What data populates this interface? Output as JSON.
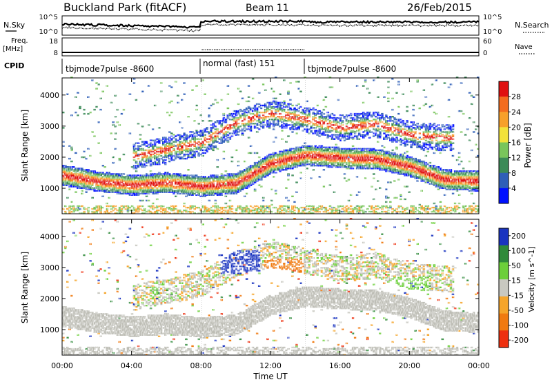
{
  "header": {
    "station": "Buckland Park (fitACF)",
    "beam": "Beam 11",
    "date": "26/Feb/2015"
  },
  "top_panels": {
    "nsky_label": "N.Sky",
    "nsearch_label": "N.Search",
    "noise_ticks": [
      "10^5",
      "10^0"
    ],
    "freq_label_line1": "Freq.",
    "freq_label_line2": "[MHz]",
    "freq_ticks": [
      "18",
      "8"
    ],
    "nave_label": "Nave",
    "nave_ticks": [
      "60",
      "0"
    ],
    "cpid_label": "CPID",
    "cpid_segments": [
      {
        "name": "tbjmode7pulse -8600",
        "start_hour": 0,
        "end_hour": 8.05
      },
      {
        "name": "normal (fast) 151",
        "start_hour": 8.05,
        "end_hour": 14.0
      },
      {
        "name": "tbjmode7pulse -8600",
        "start_hour": 14.0,
        "end_hour": 24
      }
    ]
  },
  "chart_data": [
    {
      "type": "heatmap",
      "parameter": "Power",
      "xlabel": "Time UT",
      "ylabel": "Slant Range [km]",
      "xlim": [
        0,
        24
      ],
      "ylim": [
        180,
        4550
      ],
      "x_ticks": [
        "00:00",
        "04:00",
        "08:00",
        "12:00",
        "16:00",
        "20:00",
        "00:00"
      ],
      "y_ticks": [
        1000,
        2000,
        3000,
        4000
      ],
      "colorbar": {
        "label": "Power [dB]",
        "ticks": [
          4,
          8,
          12,
          16,
          20,
          24,
          28
        ],
        "colors": [
          "#0010ff",
          "#2f5fb8",
          "#3b8a57",
          "#79c55b",
          "#f2e23a",
          "#f7a02a",
          "#f36c1e",
          "#e01010"
        ]
      },
      "echo_bands": [
        {
          "name": "main",
          "points": [
            [
              0,
              1400
            ],
            [
              2,
              1200
            ],
            [
              4,
              1080
            ],
            [
              6,
              1160
            ],
            [
              8,
              1040
            ],
            [
              10,
              1140
            ],
            [
              12,
              1780
            ],
            [
              14,
              2050
            ],
            [
              16,
              1960
            ],
            [
              18,
              1920
            ],
            [
              20,
              1680
            ],
            [
              22,
              1250
            ],
            [
              24,
              1220
            ]
          ]
        },
        {
          "name": "upper",
          "points": [
            [
              4,
              2000
            ],
            [
              8,
              2450
            ],
            [
              10,
              3100
            ],
            [
              12,
              3400
            ],
            [
              14,
              3200
            ],
            [
              16,
              2920
            ],
            [
              18,
              3050
            ],
            [
              20,
              2700
            ],
            [
              22,
              2600
            ]
          ]
        }
      ]
    },
    {
      "type": "heatmap",
      "parameter": "Velocity",
      "xlabel": "Time UT",
      "ylabel": "Slant Range [km]",
      "xlim": [
        0,
        24
      ],
      "ylim": [
        180,
        4550
      ],
      "x_ticks": [
        "00:00",
        "04:00",
        "08:00",
        "12:00",
        "16:00",
        "20:00",
        "00:00"
      ],
      "y_ticks": [
        1000,
        2000,
        3000,
        4000
      ],
      "colorbar": {
        "label": "Velocity [m s^-1]",
        "ticks": [
          "200",
          "100",
          "50",
          "15",
          "-15",
          "-50",
          "-100",
          "-200"
        ],
        "colors": [
          "#1a34c0",
          "#2f8a3a",
          "#6ccf3a",
          "#c8c8c0",
          "#f5a52a",
          "#f07a10",
          "#ee3010"
        ]
      },
      "ground_scatter_color": "#bdbdb5",
      "notable_regions": [
        {
          "time_hour": 10.2,
          "range_km": 3150,
          "value": 120
        },
        {
          "time_hour": 12.7,
          "range_km": 2900,
          "value": -60
        },
        {
          "time_hour": 20.0,
          "range_km": 2300,
          "value": 40
        }
      ]
    }
  ]
}
